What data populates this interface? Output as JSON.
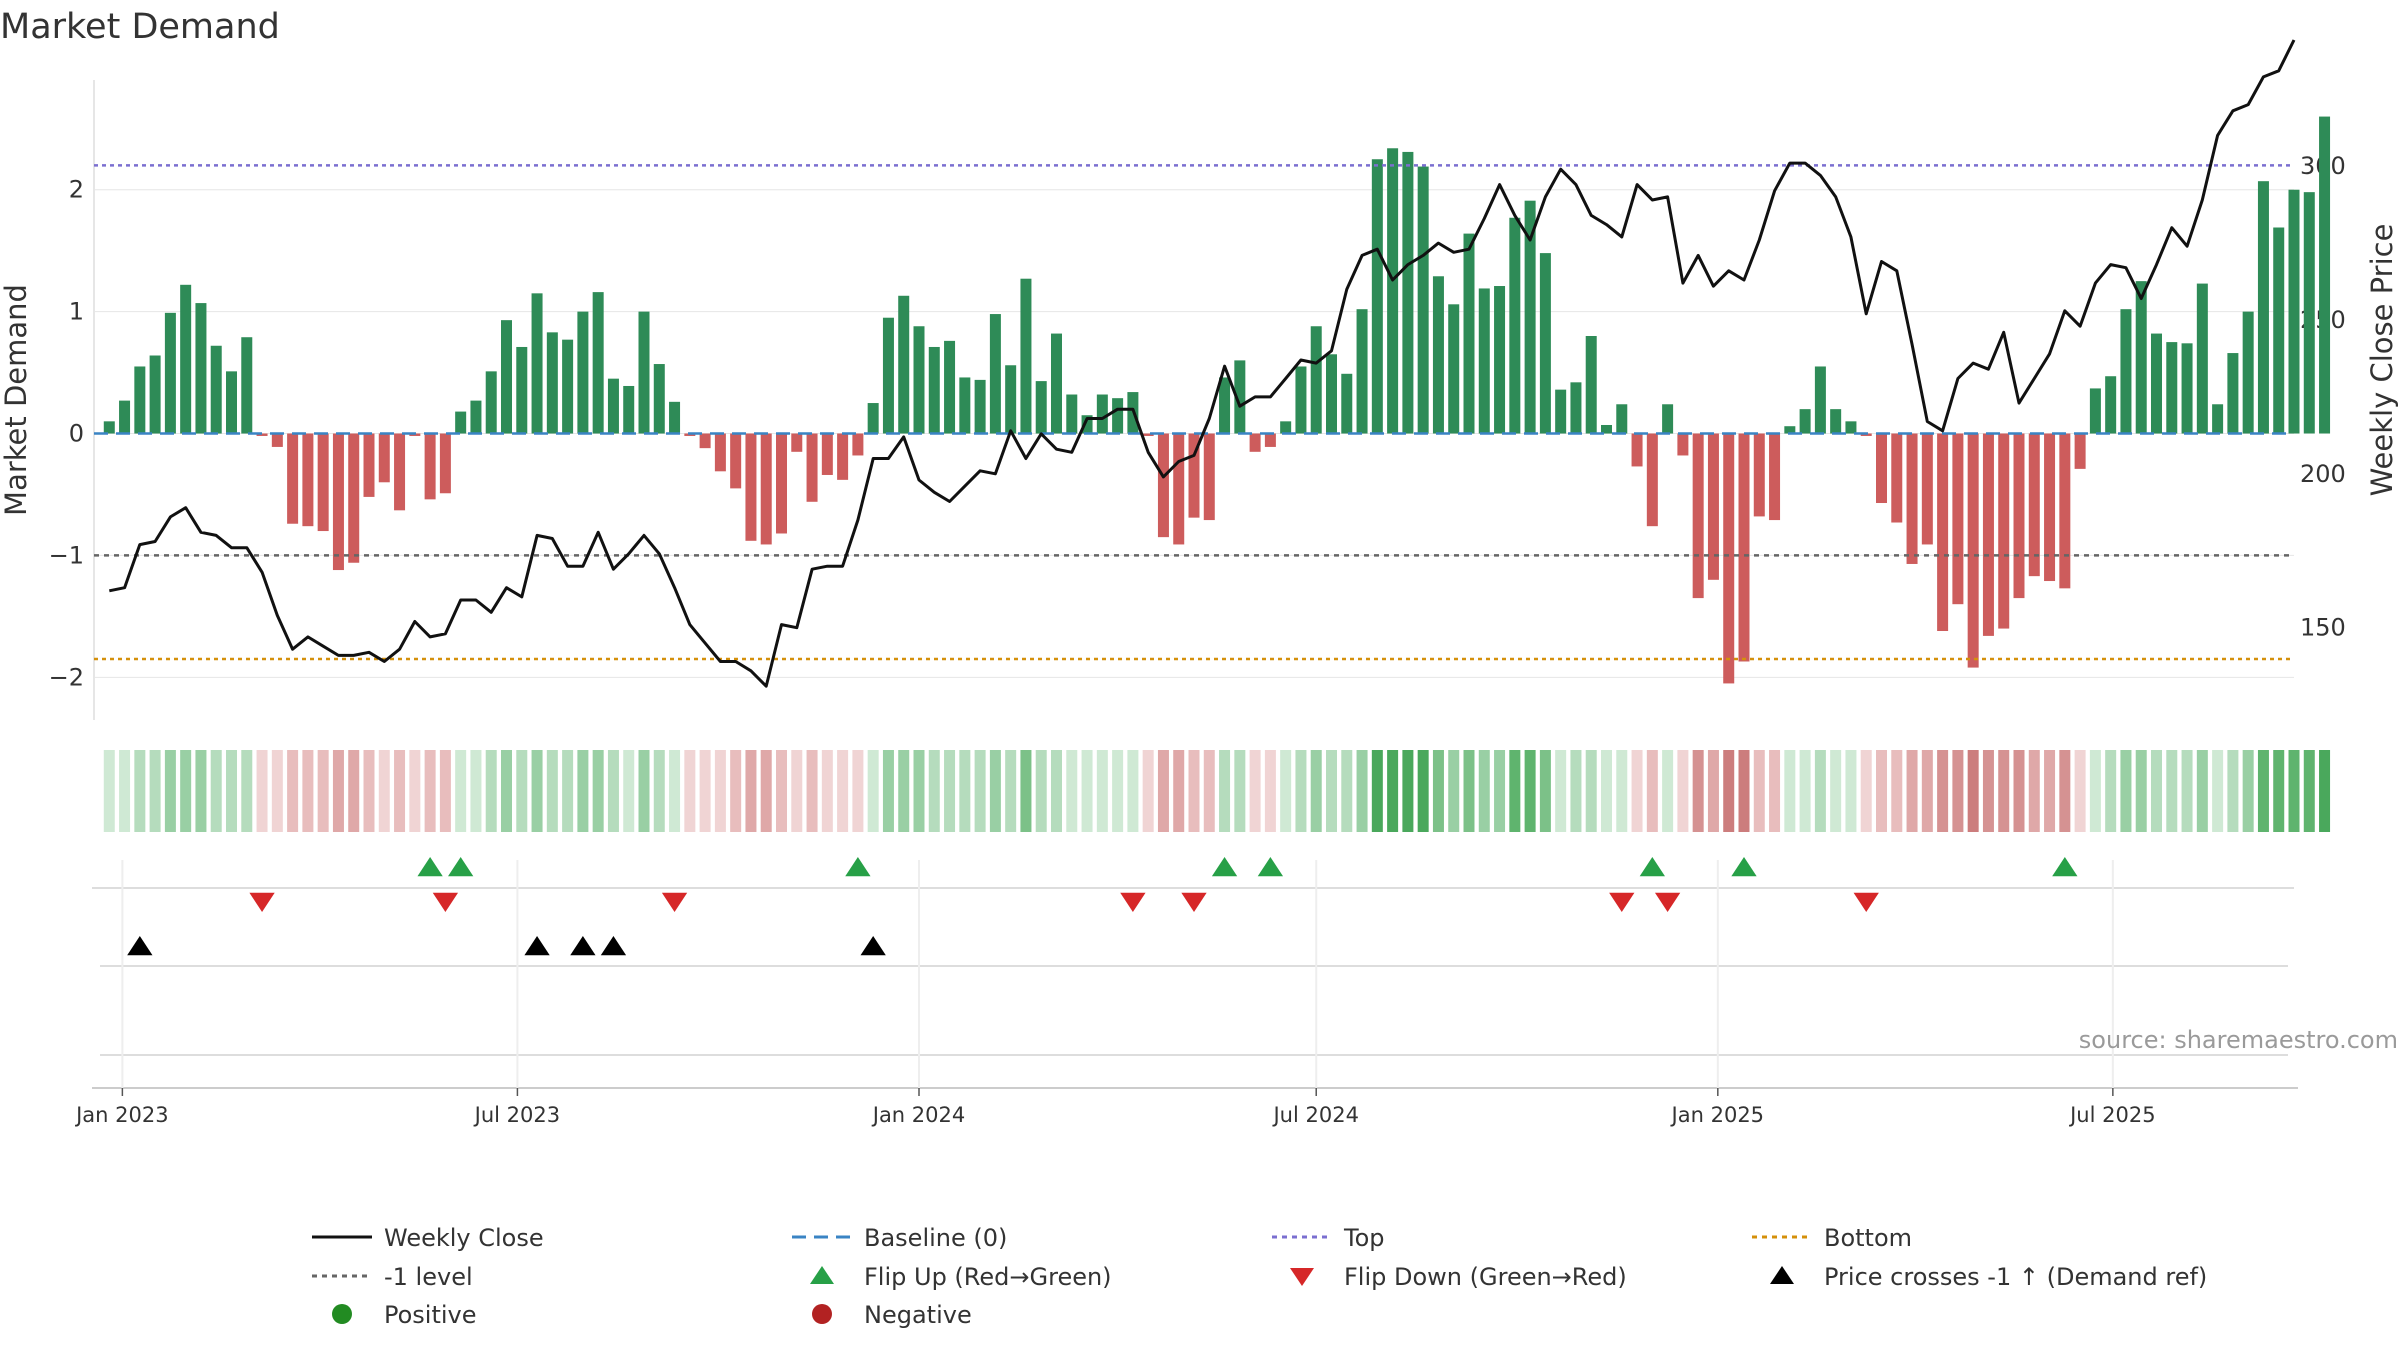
{
  "title": "Market Demand",
  "source": "source: sharemaestro.com",
  "chart_data": {
    "type": "bar",
    "title": "Market Demand",
    "ylabel": "Market Demand",
    "y2label": "Weekly Close Price",
    "ylim": [
      -2.35,
      2.9
    ],
    "y2lim": [
      120,
      328
    ],
    "yticks": [
      -2,
      -1,
      0,
      1,
      2
    ],
    "yticks_labels": [
      "−2",
      "−1",
      "0",
      "1",
      "2"
    ],
    "y2ticks": [
      150,
      200,
      250,
      300
    ],
    "x_range": [
      "2022-12-19",
      "2025-09-22"
    ],
    "xticks": [
      {
        "date": "2023-01-01",
        "label": "Jan 2023"
      },
      {
        "date": "2023-07-01",
        "label": "Jul 2023"
      },
      {
        "date": "2024-01-01",
        "label": "Jan 2024"
      },
      {
        "date": "2024-07-01",
        "label": "Jul 2024"
      },
      {
        "date": "2025-01-01",
        "label": "Jan 2025"
      },
      {
        "date": "2025-07-01",
        "label": "Jul 2025"
      }
    ],
    "reference_lines": [
      {
        "name": "Top",
        "value": 2.2,
        "color": "#7b6fd0"
      },
      {
        "name": "-1 level",
        "value": -1,
        "color": "#666666"
      },
      {
        "name": "Bottom",
        "value": -1.85,
        "color": "#d4900b"
      },
      {
        "name": "Baseline (0)",
        "value": 0,
        "color": "#3a84c4"
      }
    ],
    "start_week": "2022-12-26",
    "weeks": 142,
    "demand": [
      0.1,
      0.27,
      0.55,
      0.64,
      0.99,
      1.22,
      1.07,
      0.72,
      0.51,
      0.79,
      -0.02,
      -0.11,
      -0.74,
      -0.76,
      -0.8,
      -1.12,
      -1.06,
      -0.52,
      -0.4,
      -0.63,
      -0.02,
      -0.54,
      -0.49,
      0.18,
      0.27,
      0.51,
      0.93,
      0.71,
      1.15,
      0.83,
      0.77,
      1.0,
      1.16,
      0.45,
      0.39,
      1.0,
      0.57,
      0.26,
      -0.02,
      -0.12,
      -0.31,
      -0.45,
      -0.88,
      -0.91,
      -0.82,
      -0.15,
      -0.56,
      -0.34,
      -0.38,
      -0.18,
      0.25,
      0.95,
      1.13,
      0.88,
      0.71,
      0.76,
      0.46,
      0.44,
      0.98,
      0.56,
      1.27,
      0.43,
      0.82,
      0.32,
      0.15,
      0.32,
      0.29,
      0.34,
      -0.02,
      -0.85,
      -0.91,
      -0.69,
      -0.71,
      0.46,
      0.6,
      -0.15,
      -0.11,
      0.1,
      0.55,
      0.88,
      0.65,
      0.49,
      1.02,
      2.25,
      2.34,
      2.31,
      2.19,
      1.29,
      1.06,
      1.64,
      1.19,
      1.21,
      1.77,
      1.91,
      1.48,
      0.36,
      0.42,
      0.8,
      0.07,
      0.24,
      -0.27,
      -0.76,
      0.24,
      -0.18,
      -1.35,
      -1.2,
      -2.05,
      -1.87,
      -0.68,
      -0.71,
      0.06,
      0.2,
      0.55,
      0.2,
      0.1,
      -0.02,
      -0.57,
      -0.73,
      -1.07,
      -0.91,
      -1.62,
      -1.4,
      -1.92,
      -1.66,
      -1.6,
      -1.35,
      -1.17,
      -1.21,
      -1.27,
      -0.29,
      0.37,
      0.47,
      1.02,
      1.25,
      0.82,
      0.75,
      0.74,
      1.23,
      0.24,
      0.66,
      1.0,
      2.07,
      1.69,
      2.0,
      1.98,
      2.6
    ],
    "weekly_close": [
      162,
      163,
      177,
      178,
      186,
      189,
      181,
      180,
      176,
      176,
      168,
      154,
      143,
      147,
      144,
      141,
      141,
      142,
      139,
      143,
      152,
      147,
      148,
      159,
      159,
      155,
      163,
      160,
      180,
      179,
      170,
      170,
      181,
      169,
      174,
      180,
      174,
      163,
      151,
      145,
      139,
      139,
      136,
      131,
      151,
      150,
      169,
      170,
      170,
      185,
      205,
      205,
      212,
      198,
      194,
      191,
      196,
      201,
      200,
      214,
      205,
      213,
      208,
      207,
      218,
      218,
      221,
      221,
      207,
      199,
      204,
      206,
      218,
      235,
      222,
      225,
      225,
      231,
      237,
      236,
      240,
      260,
      271,
      273,
      263,
      268,
      271,
      275,
      272,
      273,
      283,
      294,
      284,
      276,
      290,
      299,
      294,
      284,
      281,
      277,
      294,
      289,
      290,
      262,
      271,
      261,
      266,
      263,
      276,
      292,
      301,
      301,
      297,
      290,
      277,
      252,
      269,
      266,
      242,
      217,
      214,
      231,
      236,
      234,
      246,
      223,
      231,
      239,
      253,
      248,
      262,
      268,
      267,
      257,
      268,
      280,
      274,
      289,
      310,
      318,
      320,
      329,
      331,
      341
    ]
  },
  "flips_up_dates": [
    "2023-05-22",
    "2023-06-05",
    "2023-12-04",
    "2024-05-20",
    "2024-06-10",
    "2024-12-02",
    "2025-01-13",
    "2025-06-09"
  ],
  "flips_down_dates": [
    "2023-03-06",
    "2023-05-29",
    "2023-09-11",
    "2024-04-08",
    "2024-05-06",
    "2024-11-18",
    "2024-12-09",
    "2025-03-10"
  ],
  "price_cross_dates": [
    "2023-01-09",
    "2023-07-10",
    "2023-07-31",
    "2023-08-14",
    "2023-12-11"
  ],
  "legend": [
    {
      "label": "Weekly Close",
      "icon": "solid-line",
      "color": "#111111"
    },
    {
      "label": "Baseline (0)",
      "icon": "dashed-line",
      "color": "#3a84c4"
    },
    {
      "label": "Top",
      "icon": "dotted-line",
      "color": "#7b6fd0"
    },
    {
      "label": "Bottom",
      "icon": "dotted-line",
      "color": "#d4900b"
    },
    {
      "label": "-1 level",
      "icon": "dotted-line",
      "color": "#666666"
    },
    {
      "label": "Flip Up (Red→Green)",
      "icon": "triangle-up",
      "color": "#27a047"
    },
    {
      "label": "Flip Down (Green→Red)",
      "icon": "triangle-down",
      "color": "#d62728"
    },
    {
      "label": "Price crosses -1 ↑ (Demand ref)",
      "icon": "triangle-up",
      "color": "#000000"
    },
    {
      "label": "Positive",
      "icon": "circle",
      "color": "#228b22"
    },
    {
      "label": "Negative",
      "icon": "circle",
      "color": "#b22222"
    }
  ],
  "colors": {
    "positive_bar": "#2e8b57",
    "negative_bar": "#cd5c5c",
    "grid": "#e6e6e6"
  }
}
